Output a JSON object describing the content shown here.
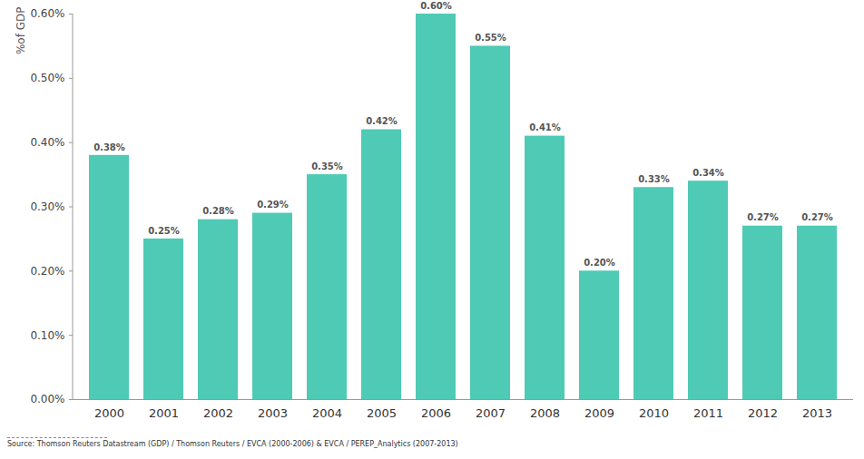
{
  "chart_data": {
    "type": "bar",
    "y_label": "%of GDP",
    "source": "Source: Thomson Reuters Datastream (GDP) / Thomson Reuters / EVCA (2000-2006) & EVCA / PEREP_Analytics (2007-2013)",
    "categories": [
      "2000",
      "2001",
      "2002",
      "2003",
      "2004",
      "2005",
      "2006",
      "2007",
      "2008",
      "2009",
      "2010",
      "2011",
      "2012",
      "2013"
    ],
    "values": [
      0.38,
      0.25,
      0.28,
      0.29,
      0.35,
      0.42,
      0.6,
      0.55,
      0.41,
      0.2,
      0.33,
      0.34,
      0.27,
      0.27
    ],
    "value_labels": [
      "0.38%",
      "0.25%",
      "0.28%",
      "0.29%",
      "0.35%",
      "0.42%",
      "0.60%",
      "0.55%",
      "0.41%",
      "0.20%",
      "0.33%",
      "0.34%",
      "0.27%",
      "0.27%"
    ],
    "color": "#4ecab5",
    "ylim": [
      0,
      0.6
    ],
    "yticks": [
      {
        "value": 0,
        "label": "0.00%"
      },
      {
        "value": 0.1,
        "label": "0.10%"
      },
      {
        "value": 0.2,
        "label": "0.20%"
      },
      {
        "value": 0.3,
        "label": "0.30%"
      },
      {
        "value": 0.4,
        "label": "0.40%"
      },
      {
        "value": 0.5,
        "label": "0.50%"
      },
      {
        "value": 0.6,
        "label": "0.60%"
      }
    ],
    "grid": false,
    "data_labels": true
  }
}
